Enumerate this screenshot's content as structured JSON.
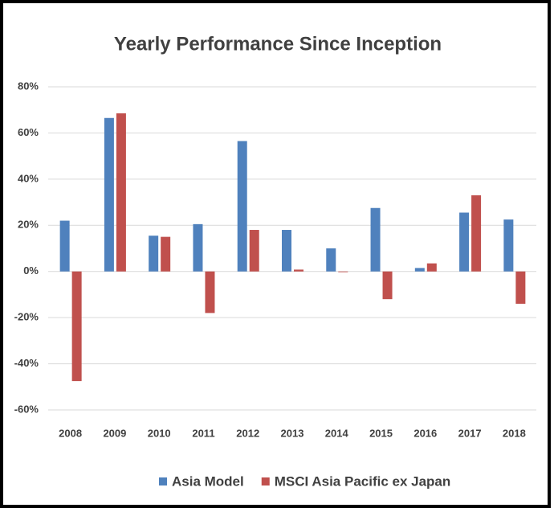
{
  "chart_data": {
    "type": "bar",
    "title": "Yearly Performance Since Inception",
    "categories": [
      "2008",
      "2009",
      "2010",
      "2011",
      "2012",
      "2013",
      "2014",
      "2015",
      "2016",
      "2017",
      "2018"
    ],
    "series": [
      {
        "name": "Asia Model",
        "color": "#4f81bd",
        "values": [
          22,
          66.5,
          15.5,
          20.5,
          56.5,
          18,
          10,
          27.5,
          1.5,
          25.5,
          22.5
        ]
      },
      {
        "name": "MSCI Asia Pacific ex Japan",
        "color": "#c0504d",
        "values": [
          -47.5,
          68.5,
          15,
          -18,
          18,
          0.8,
          -0.3,
          -12,
          3.5,
          33,
          -14
        ]
      }
    ],
    "ylim": [
      -60,
      80
    ],
    "yticks": [
      {
        "value": -60,
        "label": "-60%"
      },
      {
        "value": -40,
        "label": "-40%"
      },
      {
        "value": -20,
        "label": "-20%"
      },
      {
        "value": 0,
        "label": "0%"
      },
      {
        "value": 20,
        "label": "20%"
      },
      {
        "value": 40,
        "label": "40%"
      },
      {
        "value": 60,
        "label": "60%"
      },
      {
        "value": 80,
        "label": "80%"
      }
    ],
    "grid": true,
    "legend": "bottom"
  }
}
